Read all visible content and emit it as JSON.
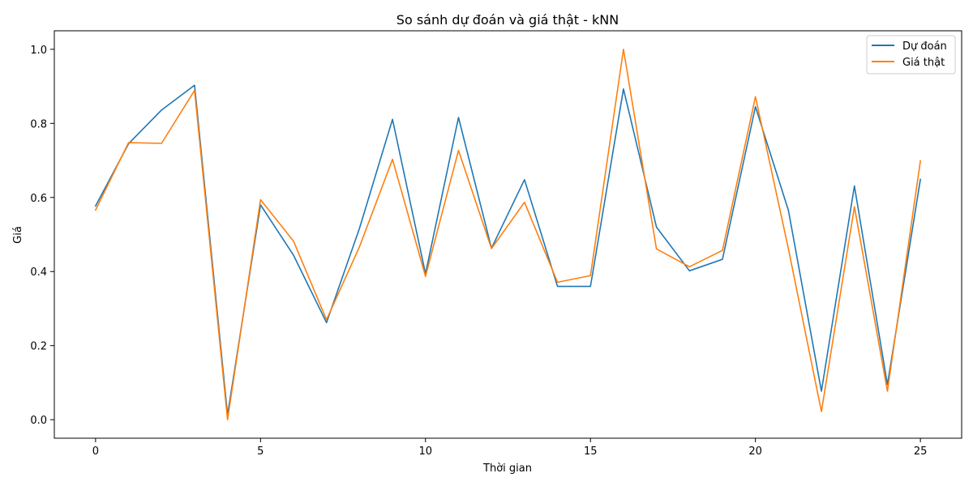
{
  "chart_data": {
    "type": "line",
    "title": "So sánh dự đoán và giá thật - kNN",
    "xlabel": "Thời gian",
    "ylabel": "Giá",
    "xlim": [
      -1.25,
      26.25
    ],
    "ylim": [
      -0.05,
      1.05
    ],
    "xticks": [
      0,
      5,
      10,
      15,
      20,
      25
    ],
    "yticks": [
      0.0,
      0.2,
      0.4,
      0.6,
      0.8,
      1.0
    ],
    "grid": false,
    "legend_position": "top-right",
    "x": [
      0,
      1,
      2,
      3,
      4,
      5,
      6,
      7,
      8,
      9,
      10,
      11,
      12,
      13,
      14,
      15,
      16,
      17,
      18,
      19,
      20,
      21,
      22,
      23,
      24,
      25
    ],
    "series": [
      {
        "name": "Dự đoán",
        "color": "#1f77b4",
        "values": [
          0.577,
          0.745,
          0.836,
          0.903,
          0.013,
          0.58,
          0.444,
          0.262,
          0.517,
          0.811,
          0.394,
          0.816,
          0.463,
          0.648,
          0.36,
          0.36,
          0.893,
          0.52,
          0.402,
          0.433,
          0.845,
          0.565,
          0.077,
          0.631,
          0.095,
          0.649
        ]
      },
      {
        "name": "Giá thật",
        "color": "#ff7f0e",
        "values": [
          0.566,
          0.748,
          0.746,
          0.889,
          0.0,
          0.594,
          0.482,
          0.27,
          0.467,
          0.703,
          0.387,
          0.727,
          0.462,
          0.587,
          0.371,
          0.389,
          1.0,
          0.461,
          0.413,
          0.457,
          0.872,
          0.461,
          0.022,
          0.575,
          0.077,
          0.699
        ]
      }
    ]
  }
}
